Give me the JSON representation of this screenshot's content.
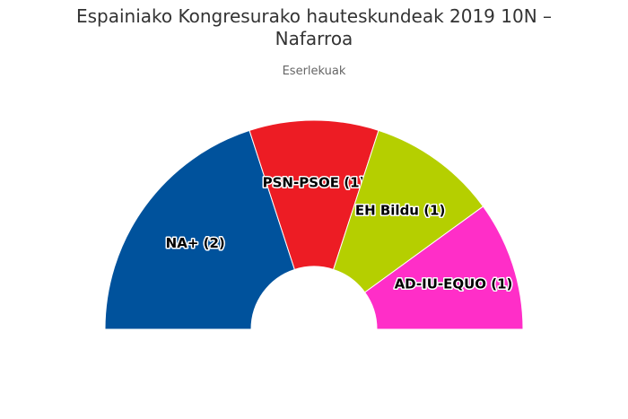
{
  "title": "Espainiako Kongresurako hauteskundeak 2019 10N –",
  "title_line2": "Nafarroa",
  "subtitle": "Eserlekuak",
  "chart_data": {
    "type": "pie",
    "variant": "parliament-semicircle",
    "title": "Espainiako Kongresurako hauteskundeak 2019 10N – Nafarroa",
    "subtitle": "Eserlekuak",
    "categories": [
      "NA+",
      "PSN-PSOE",
      "EH Bildu",
      "AD-IU-EQUO"
    ],
    "values": [
      2,
      1,
      1,
      1
    ],
    "labels": [
      "NA+ (2)",
      "PSN-PSOE (1)",
      "EH Bildu (1)",
      "AD-IU-EQUO (1)"
    ],
    "colors": [
      "#00529c",
      "#ed1c24",
      "#b5cf00",
      "#ff2ec8"
    ]
  }
}
